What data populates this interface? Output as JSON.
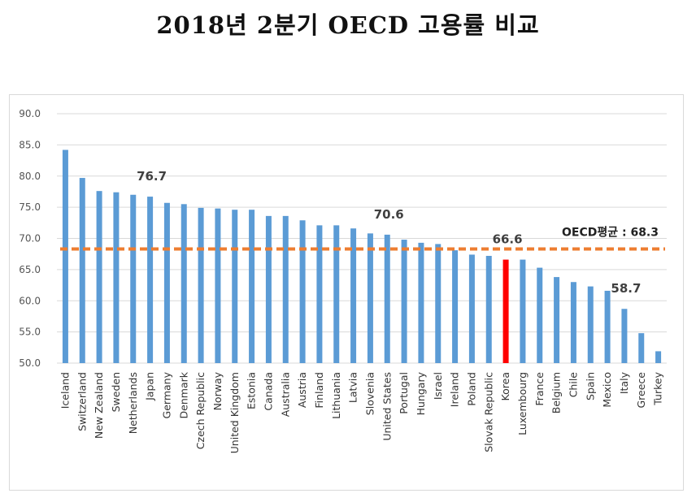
{
  "title": "2018년 2분기 OECD 고용률 비교",
  "chart_data": {
    "type": "bar",
    "categories": [
      "Iceland",
      "Switzerland",
      "New Zealand",
      "Sweden",
      "Netherlands",
      "Japan",
      "Germany",
      "Denmark",
      "Czech Republic",
      "Norway",
      "United Kingdom",
      "Estonia",
      "Canada",
      "Australia",
      "Austria",
      "Finland",
      "Lithuania",
      "Latvia",
      "Slovenia",
      "United States",
      "Portugal",
      "Hungary",
      "Israel",
      "Ireland",
      "Poland",
      "Slovak Republic",
      "Korea",
      "Luxembourg",
      "France",
      "Belgium",
      "Chile",
      "Spain",
      "Mexico",
      "Italy",
      "Greece",
      "Turkey"
    ],
    "values": [
      84.2,
      79.7,
      77.6,
      77.4,
      77.0,
      76.7,
      75.7,
      75.5,
      74.9,
      74.8,
      74.6,
      74.6,
      73.6,
      73.6,
      72.9,
      72.1,
      72.1,
      71.6,
      70.8,
      70.6,
      69.8,
      69.3,
      69.1,
      68.1,
      67.4,
      67.2,
      66.6,
      66.6,
      65.3,
      63.8,
      63.0,
      62.3,
      61.6,
      58.7,
      54.8,
      51.9
    ],
    "ylim": [
      50,
      90
    ],
    "yticks": [
      "90.0",
      "85.0",
      "80.0",
      "75.0",
      "70.0",
      "65.0",
      "60.0",
      "55.0",
      "50.0"
    ],
    "bar_color": "#5b9bd5",
    "highlight": {
      "category": "Korea",
      "color": "#ff0000"
    },
    "grid": true,
    "average": {
      "label": "OECD평균 : 68.3",
      "value": 68.3,
      "color": "#ed7d31"
    },
    "data_labels": [
      {
        "category": "Japan",
        "text": "76.7"
      },
      {
        "category": "United States",
        "text": "70.6"
      },
      {
        "category": "Korea",
        "text": "66.6"
      },
      {
        "category": "Italy",
        "text": "58.7"
      }
    ]
  }
}
